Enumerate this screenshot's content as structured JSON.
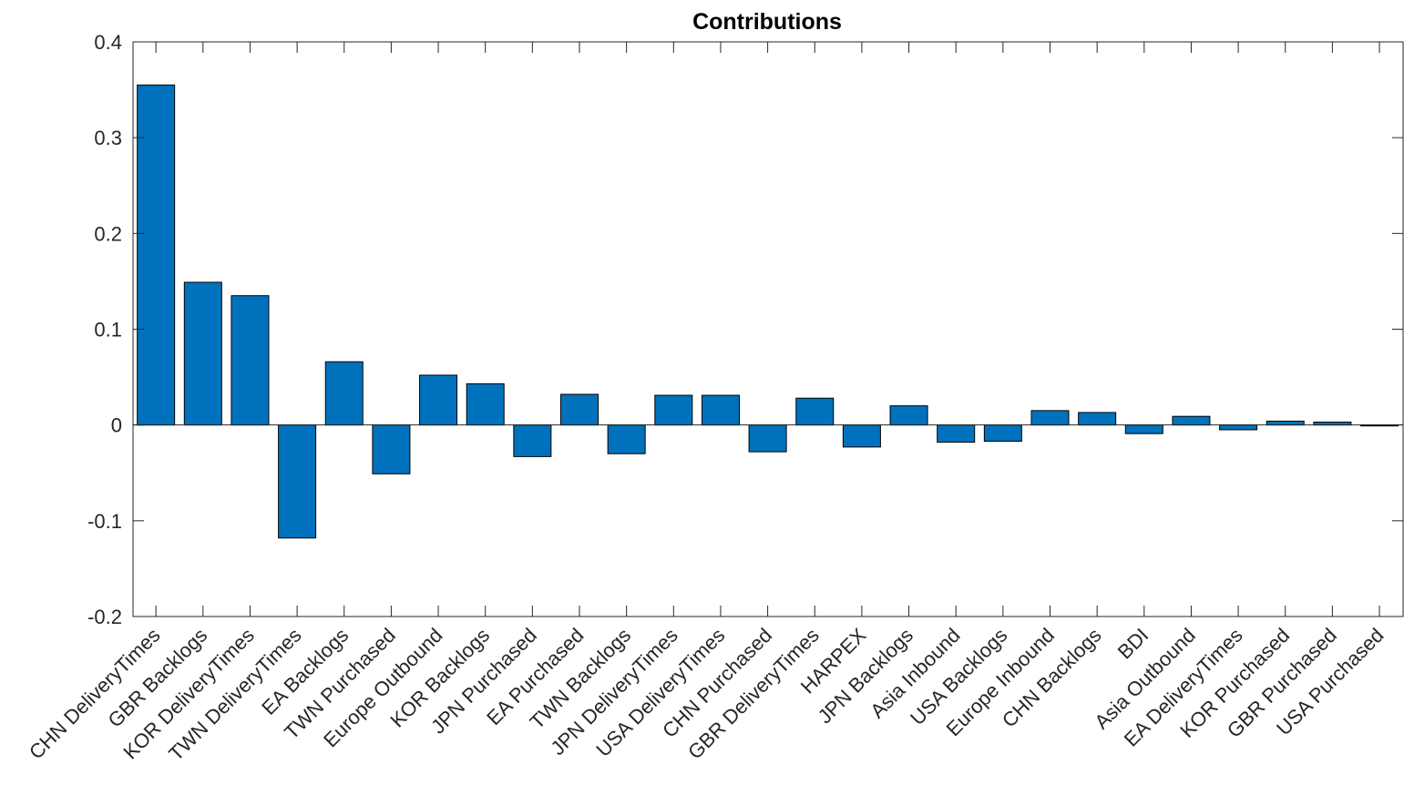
{
  "chart_data": {
    "type": "bar",
    "title": "Contributions",
    "xlabel": "",
    "ylabel": "",
    "ylim": [
      -0.2,
      0.4
    ],
    "yticks": [
      -0.2,
      -0.1,
      0,
      0.1,
      0.2,
      0.3,
      0.4
    ],
    "ytick_labels": [
      "-0.2",
      "-0.1",
      "0",
      "0.1",
      "0.2",
      "0.3",
      "0.4"
    ],
    "grid": false,
    "bar_color": "#0072BD",
    "categories": [
      "CHN DeliveryTimes",
      "GBR Backlogs",
      "KOR DeliveryTimes",
      "TWN DeliveryTimes",
      "EA Backlogs",
      "TWN Purchased",
      "Europe Outbound",
      "KOR Backlogs",
      "JPN Purchased",
      "EA Purchased",
      "TWN Backlogs",
      "JPN DeliveryTimes",
      "USA DeliveryTimes",
      "CHN Purchased",
      "GBR DeliveryTimes",
      "HARPEX",
      "JPN Backlogs",
      "Asia Inbound",
      "USA Backlogs",
      "Europe Inbound",
      "CHN Backlogs",
      "BDI",
      "Asia Outbound",
      "EA DeliveryTimes",
      "KOR Purchased",
      "GBR Purchased",
      "USA Purchased"
    ],
    "values": [
      0.355,
      0.149,
      0.135,
      -0.118,
      0.066,
      -0.051,
      0.052,
      0.043,
      -0.033,
      0.032,
      -0.03,
      0.031,
      0.031,
      -0.028,
      0.028,
      -0.023,
      0.02,
      -0.018,
      -0.017,
      0.015,
      0.013,
      -0.009,
      0.009,
      -0.005,
      0.004,
      0.003,
      -0.001
    ]
  }
}
